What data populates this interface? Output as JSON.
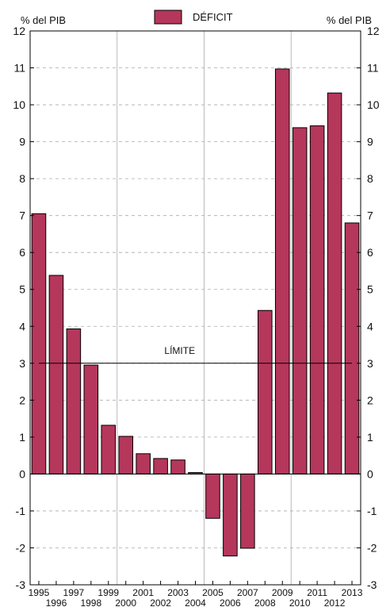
{
  "chart_data": {
    "type": "bar",
    "legend": {
      "label": "DÉFICIT",
      "placement": "top-center"
    },
    "ylabel_left": "% del PIB",
    "ylabel_right": "% del PIB",
    "ylim": [
      -3,
      12
    ],
    "yticks": [
      -3,
      -2,
      -1,
      0,
      1,
      2,
      3,
      4,
      5,
      6,
      7,
      8,
      9,
      10,
      11,
      12
    ],
    "categories": [
      "1995",
      "1996",
      "1997",
      "1998",
      "1999",
      "2000",
      "2001",
      "2002",
      "2003",
      "2004",
      "2005",
      "2006",
      "2007",
      "2008",
      "2009",
      "2010",
      "2011",
      "2012",
      "2013"
    ],
    "series": [
      {
        "name": "DÉFICIT",
        "values": [
          7.05,
          5.38,
          3.93,
          2.95,
          1.32,
          1.02,
          0.55,
          0.42,
          0.38,
          0.04,
          -1.2,
          -2.22,
          -2.01,
          4.43,
          10.97,
          9.38,
          9.43,
          10.32,
          6.8
        ]
      }
    ],
    "reference_line": {
      "label": "LÍMITE",
      "value": 3
    },
    "colors": {
      "bar": "#b5375b",
      "bar_edge": "#000000",
      "grid": "#aaaaaa",
      "reference_line": "#000000"
    },
    "grid": {
      "horizontal": "dashed",
      "vertical_every_years": 5
    }
  }
}
